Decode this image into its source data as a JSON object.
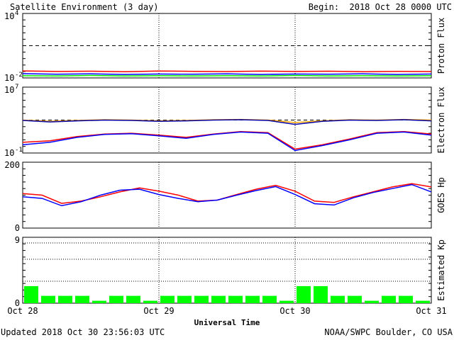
{
  "header": {
    "title": "Satellite Environment (3 day)",
    "begin": "Begin:  2018 Oct 28 0000 UTC"
  },
  "footer": {
    "updated": "Updated 2018 Oct 30 23:56:03 UTC",
    "credit": "NOAA/SWPC Boulder, CO USA"
  },
  "colors": {
    "red": "#ff0000",
    "blue": "#0000ff",
    "green": "#00ee00",
    "orange": "#ffa500",
    "navy": "#0000aa",
    "kp_bar": "#00ff00"
  },
  "chart_data": [
    {
      "type": "line",
      "ylabel": "Proton Flux",
      "yscale": "log",
      "ylim": [
        0.01,
        10000
      ],
      "yticks": [
        {
          "label": "10",
          "exp": "4"
        },
        {
          "label": "10",
          "exp": "-2"
        }
      ],
      "xlim_days": [
        0,
        3
      ],
      "day_separators": true,
      "threshold": 10,
      "series": [
        {
          "color": "red",
          "values": [
            0.045,
            0.04,
            0.042,
            0.038,
            0.044,
            0.041,
            0.039,
            0.043,
            0.04,
            0.042,
            0.038,
            0.041,
            0.039
          ]
        },
        {
          "color": "blue",
          "values": [
            0.025,
            0.022,
            0.024,
            0.021,
            0.023,
            0.022,
            0.024,
            0.021,
            0.023,
            0.022,
            0.024,
            0.021,
            0.023
          ]
        },
        {
          "color": "green",
          "values": [
            0.016,
            0.015,
            0.017,
            0.015,
            0.016,
            0.015,
            0.016,
            0.015,
            0.017,
            0.015,
            0.016,
            0.015,
            0.016
          ]
        }
      ]
    },
    {
      "type": "line",
      "ylabel": "Electron Flux",
      "yscale": "log",
      "ylim": [
        0.1,
        10000000
      ],
      "yticks": [
        {
          "label": "10",
          "exp": "7"
        },
        {
          "label": "10",
          "exp": "-1"
        }
      ],
      "xlim_days": [
        0,
        3
      ],
      "day_separators": true,
      "threshold": 1000,
      "series": [
        {
          "color": "orange",
          "values": [
            1000,
            700,
            900,
            1100,
            1000,
            800,
            900,
            1100,
            1200,
            1000,
            500,
            800,
            1100,
            1000,
            1200,
            1000
          ]
        },
        {
          "color": "navy",
          "values": [
            900,
            600,
            800,
            1000,
            900,
            700,
            800,
            1000,
            1100,
            900,
            300,
            700,
            1000,
            900,
            1100,
            800
          ]
        },
        {
          "color": "red",
          "values": [
            2,
            3,
            10,
            20,
            25,
            15,
            8,
            20,
            40,
            30,
            0.3,
            1,
            5,
            30,
            40,
            20
          ]
        },
        {
          "color": "blue",
          "values": [
            1,
            2,
            8,
            18,
            22,
            12,
            6,
            18,
            35,
            25,
            0.2,
            0.8,
            4,
            25,
            35,
            15
          ]
        }
      ]
    },
    {
      "type": "line",
      "ylabel": "GOES Hp",
      "ylim": [
        0,
        200
      ],
      "yticks": [
        "200",
        "0"
      ],
      "xlim_days": [
        0,
        3
      ],
      "day_separators": true,
      "series": [
        {
          "color": "red",
          "values": [
            105,
            100,
            75,
            82,
            95,
            110,
            122,
            112,
            100,
            82,
            85,
            102,
            118,
            130,
            112,
            82,
            78,
            95,
            110,
            125,
            135,
            125
          ]
        },
        {
          "color": "blue",
          "values": [
            95,
            90,
            68,
            80,
            100,
            115,
            118,
            102,
            90,
            80,
            85,
            100,
            114,
            126,
            102,
            74,
            70,
            92,
            108,
            120,
            132,
            110
          ]
        }
      ]
    },
    {
      "type": "bar",
      "ylabel": "Estimated Kp",
      "ylim": [
        0,
        9
      ],
      "yticks": [
        "9",
        "0"
      ],
      "xlim_days": [
        0,
        3
      ],
      "day_separators": true,
      "values": [
        2.33,
        1.0,
        1.0,
        1.0,
        0.33,
        1.0,
        1.0,
        0.33,
        1.0,
        1.0,
        1.0,
        1.0,
        1.0,
        1.0,
        1.0,
        0.33,
        2.33,
        2.33,
        1.0,
        1.0,
        0.33,
        1.0,
        1.0,
        0.33
      ],
      "xlabel": "Universal Time",
      "xticks": [
        "Oct 28",
        "Oct 29",
        "Oct 30",
        "Oct 31"
      ]
    }
  ]
}
